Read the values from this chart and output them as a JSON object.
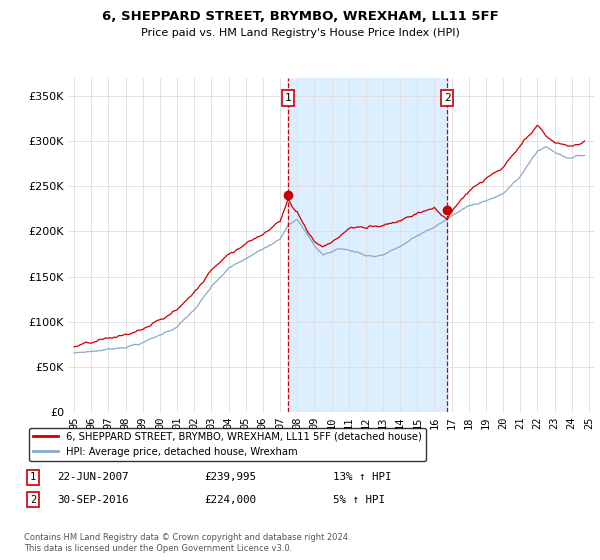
{
  "title": "6, SHEPPARD STREET, BRYMBO, WREXHAM, LL11 5FF",
  "subtitle": "Price paid vs. HM Land Registry's House Price Index (HPI)",
  "legend_label_red": "6, SHEPPARD STREET, BRYMBO, WREXHAM, LL11 5FF (detached house)",
  "legend_label_blue": "HPI: Average price, detached house, Wrexham",
  "annotation1_date": "22-JUN-2007",
  "annotation1_price": "£239,995",
  "annotation1_hpi": "13% ↑ HPI",
  "annotation1_year": 2007.47,
  "annotation2_date": "30-SEP-2016",
  "annotation2_price": "£224,000",
  "annotation2_hpi": "5% ↑ HPI",
  "annotation2_year": 2016.75,
  "footer": "Contains HM Land Registry data © Crown copyright and database right 2024.\nThis data is licensed under the Open Government Licence v3.0.",
  "background_color": "#ffffff",
  "plot_bg_color": "#ffffff",
  "highlight_color": "#ddeeff",
  "ylim": [
    0,
    370000
  ],
  "yticks": [
    0,
    50000,
    100000,
    150000,
    200000,
    250000,
    300000,
    350000
  ],
  "red_color": "#cc0000",
  "blue_color": "#88aacc",
  "grid_color": "#dddddd"
}
